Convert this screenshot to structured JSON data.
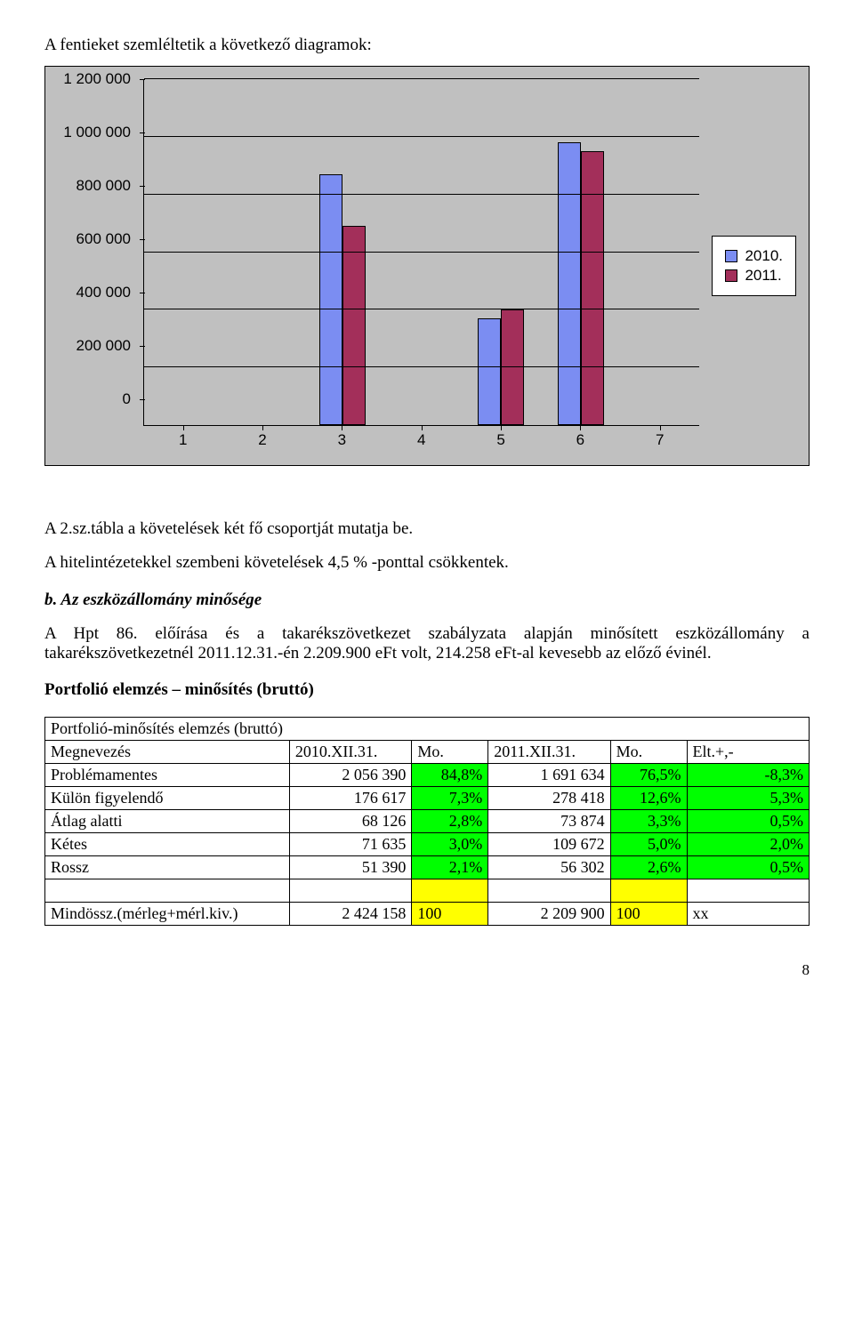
{
  "intro_text": "A fentieket szemléltetik a következő diagramok:",
  "chart": {
    "type": "bar",
    "categories": [
      "1",
      "2",
      "3",
      "4",
      "5",
      "6",
      "7"
    ],
    "series": [
      {
        "label": "2010.",
        "color": "#7b8df2",
        "values": [
          0,
          0,
          870000,
          0,
          370000,
          980000,
          0
        ]
      },
      {
        "label": "2011.",
        "color": "#a32f5a",
        "values": [
          0,
          0,
          690000,
          0,
          400000,
          950000,
          0
        ]
      }
    ],
    "y_ticks": [
      "0",
      "200 000",
      "400 000",
      "600 000",
      "800 000",
      "1 000 000",
      "1 200 000"
    ],
    "y_max": 1200000,
    "background_color": "#c0c0c0",
    "grid_color": "#000000",
    "bar_border": "#000000",
    "label_font": "Arial",
    "label_fontsize": 17
  },
  "para1": "A 2.sz.tábla a követelések két fő csoportját mutatja be.",
  "para2": "A hitelintézetekkel szembeni követelések 4,5 % -ponttal csökkentek.",
  "section_b_label": "b. Az eszközállomány minősége",
  "para3a": "A Hpt 86.",
  "para3b": " előírása és a takarékszövetkezet szabályzata alapján minősített eszközállomány a takarékszövetkezetnél 2011.12.31.-én 2.209.900 eFt volt, 214.258 eFt-al kevesebb az előző évinél.",
  "heading_portfolio": "Portfolió elemzés – minősítés (bruttó)",
  "table": {
    "title": "Portfolió-minősítés elemzés (bruttó)",
    "columns": [
      "Megnevezés",
      "2010.XII.31.",
      "Mo.",
      "2011.XII.31.",
      "Mo.",
      "Elt.+,-"
    ],
    "col_widths": [
      "32%",
      "16%",
      "10%",
      "16%",
      "10%",
      "16%"
    ],
    "rows": [
      {
        "label": "Problémamentes",
        "v2010": "2 056 390",
        "mo1": "84,8%",
        "v2011": "1 691 634",
        "mo2": "76,5%",
        "elt": "-8,3%",
        "hl_mo": true,
        "hl_elt": true
      },
      {
        "label": "Külön figyelendő",
        "v2010": "176 617",
        "mo1": "7,3%",
        "v2011": "278 418",
        "mo2": "12,6%",
        "elt": "5,3%",
        "hl_mo": true,
        "hl_elt": true
      },
      {
        "label": "Átlag alatti",
        "v2010": "68 126",
        "mo1": "2,8%",
        "v2011": "73 874",
        "mo2": "3,3%",
        "elt": "0,5%",
        "hl_mo": true,
        "hl_elt": true
      },
      {
        "label": "Kétes",
        "v2010": "71 635",
        "mo1": "3,0%",
        "v2011": "109 672",
        "mo2": "5,0%",
        "elt": "2,0%",
        "hl_mo": true,
        "hl_elt": true
      },
      {
        "label": "Rossz",
        "v2010": "51 390",
        "mo1": "2,1%",
        "v2011": "56 302",
        "mo2": "2,6%",
        "elt": "0,5%",
        "hl_mo": true,
        "hl_elt": true
      }
    ],
    "total": {
      "label": "Mindössz.(mérleg+mérl.kiv.)",
      "v2010": "2 424 158",
      "mo1": "100",
      "v2011": "2 209 900",
      "mo2": "100",
      "elt": "xx"
    },
    "highlight_green": "#00ff00",
    "highlight_yellow": "#ffff00"
  },
  "page_number": "8"
}
